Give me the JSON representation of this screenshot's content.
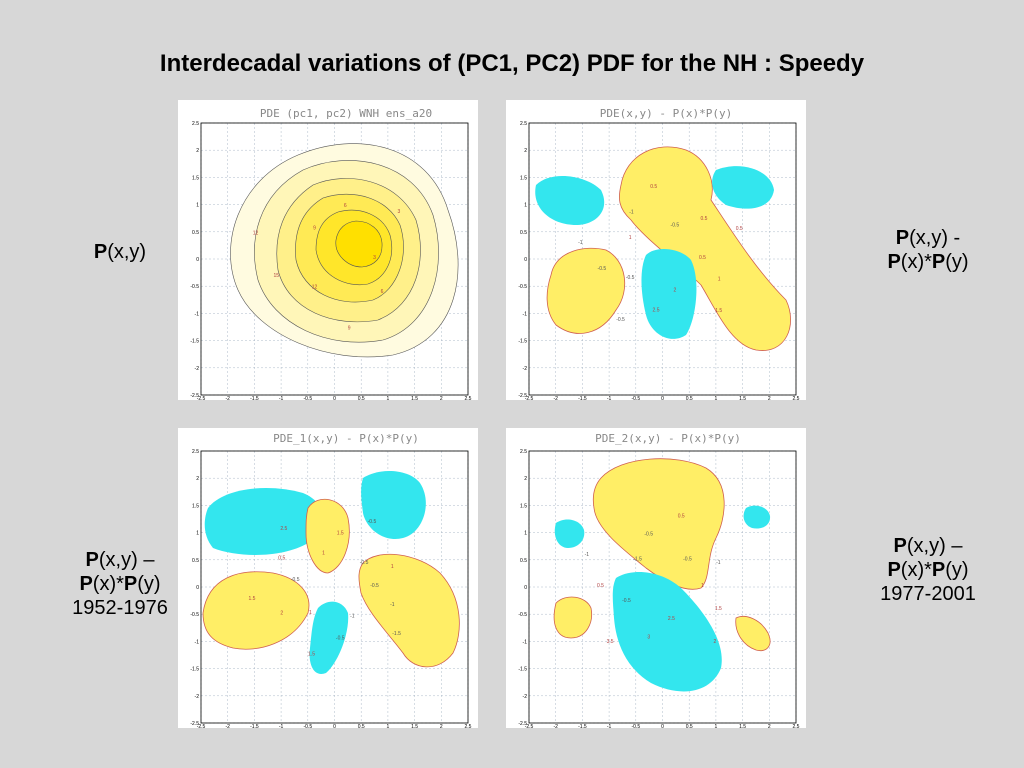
{
  "slide": {
    "title": "Interdecadal variations of (PC1, PC2) PDF for the NH : Speedy"
  },
  "labels": {
    "pxy": {
      "bold1": "P",
      "rest1": "(x,y)"
    },
    "diff": {
      "bold1": "P",
      "rest1": "(x,y) -",
      "bold2": "P",
      "rest2": "(x)*",
      "bold3": "P",
      "rest3": "(y)"
    },
    "diff1": {
      "bold1": "P",
      "rest1": "(x,y) –",
      "bold2": "P",
      "rest2": "(x)*",
      "bold3": "P",
      "rest3": "(y)",
      "period": "1952-1976"
    },
    "diff2": {
      "bold1": "P",
      "rest1": "(x,y) –",
      "bold2": "P",
      "rest2": "(x)*",
      "bold3": "P",
      "rest3": "(y)",
      "period": "1977-2001"
    }
  },
  "colors": {
    "positive_fill": "#ffee66",
    "positive_light": "#fffbe0",
    "negative_fill": "#33e6ee",
    "contour": "#555555",
    "positive_contour": "#d06050"
  },
  "chart_data": [
    {
      "type": "heatmap",
      "title": "PDE (pc1, pc2) WNH  ens_a20",
      "xlim": [
        -2.5,
        2.5
      ],
      "ylim": [
        -2.5,
        2.5
      ],
      "xticks": [
        "-2.5",
        "-2",
        "-1.5",
        "-1",
        "-0.5",
        "0",
        "0.5",
        "1",
        "1.5",
        "2",
        "2.5"
      ],
      "yticks": [
        "2.5",
        "2",
        "1.5",
        "1",
        "0.5",
        "0",
        "-0.5",
        "-1",
        "-1.5",
        "-2",
        "-2.5"
      ],
      "grid": true,
      "contour_labels": [
        "3",
        "6",
        "9",
        "12",
        "15",
        "12",
        "9",
        "6",
        "3"
      ]
    },
    {
      "type": "heatmap",
      "title": "PDE(x,y) - P(x)*P(y)",
      "xlim": [
        -2.5,
        2.5
      ],
      "ylim": [
        -2.5,
        2.5
      ],
      "xticks": [
        "-2.5",
        "-2",
        "-1.5",
        "-1",
        "-0.5",
        "0",
        "0.5",
        "1",
        "1.5",
        "2",
        "2.5"
      ],
      "yticks": [
        "2.5",
        "2",
        "1.5",
        "1",
        "0.5",
        "0",
        "-0.5",
        "-1",
        "-1.5",
        "-2",
        "-2.5"
      ],
      "grid": true,
      "contour_labels": [
        "0.5",
        "1",
        "1.5",
        "2",
        "2.5",
        "-0.5",
        "-0.5",
        "-0.5",
        "-1",
        "1",
        "-1",
        "0.5",
        "-0.5",
        "0.5",
        "0.5"
      ]
    },
    {
      "type": "heatmap",
      "title": "PDE_1(x,y) - P(x)*P(y)",
      "xlim": [
        -2.5,
        2.5
      ],
      "ylim": [
        -2.5,
        2.5
      ],
      "xticks": [
        "-2.5",
        "-2",
        "-1.5",
        "-1",
        "-0.5",
        "0",
        "0.5",
        "1",
        "1.5",
        "2",
        "2.5"
      ],
      "yticks": [
        "2.5",
        "2",
        "1.5",
        "1",
        "0.5",
        "0",
        "-0.5",
        "-1",
        "-1.5",
        "-2",
        "-2.5"
      ],
      "grid": true,
      "contour_labels": [
        "-0.5",
        "-1",
        "-1.5",
        "-1",
        "-0.5",
        "1.5",
        "1",
        "2",
        "1.5",
        "-0.5",
        "0.5",
        "2.5",
        "1",
        "1.5",
        "-0.5",
        "-0.5",
        "1"
      ]
    },
    {
      "type": "heatmap",
      "title": "PDE_2(x,y) - P(x)*P(y)",
      "xlim": [
        -2.5,
        2.5
      ],
      "ylim": [
        -2.5,
        2.5
      ],
      "xticks": [
        "-2.5",
        "-2",
        "-1.5",
        "-1",
        "-0.5",
        "0",
        "0.5",
        "1",
        "1.5",
        "2",
        "2.5"
      ],
      "yticks": [
        "2.5",
        "2",
        "1.5",
        "1",
        "0.5",
        "0",
        "-0.5",
        "-1",
        "-1.5",
        "-2",
        "-2.5"
      ],
      "grid": true,
      "contour_labels": [
        "1",
        "1.5",
        "2",
        "2.5",
        "3",
        "3.5",
        "-0.5",
        "0.5",
        "-1",
        "-1.5",
        "-0.5",
        "0.5",
        "-0.5",
        "-1"
      ]
    }
  ]
}
